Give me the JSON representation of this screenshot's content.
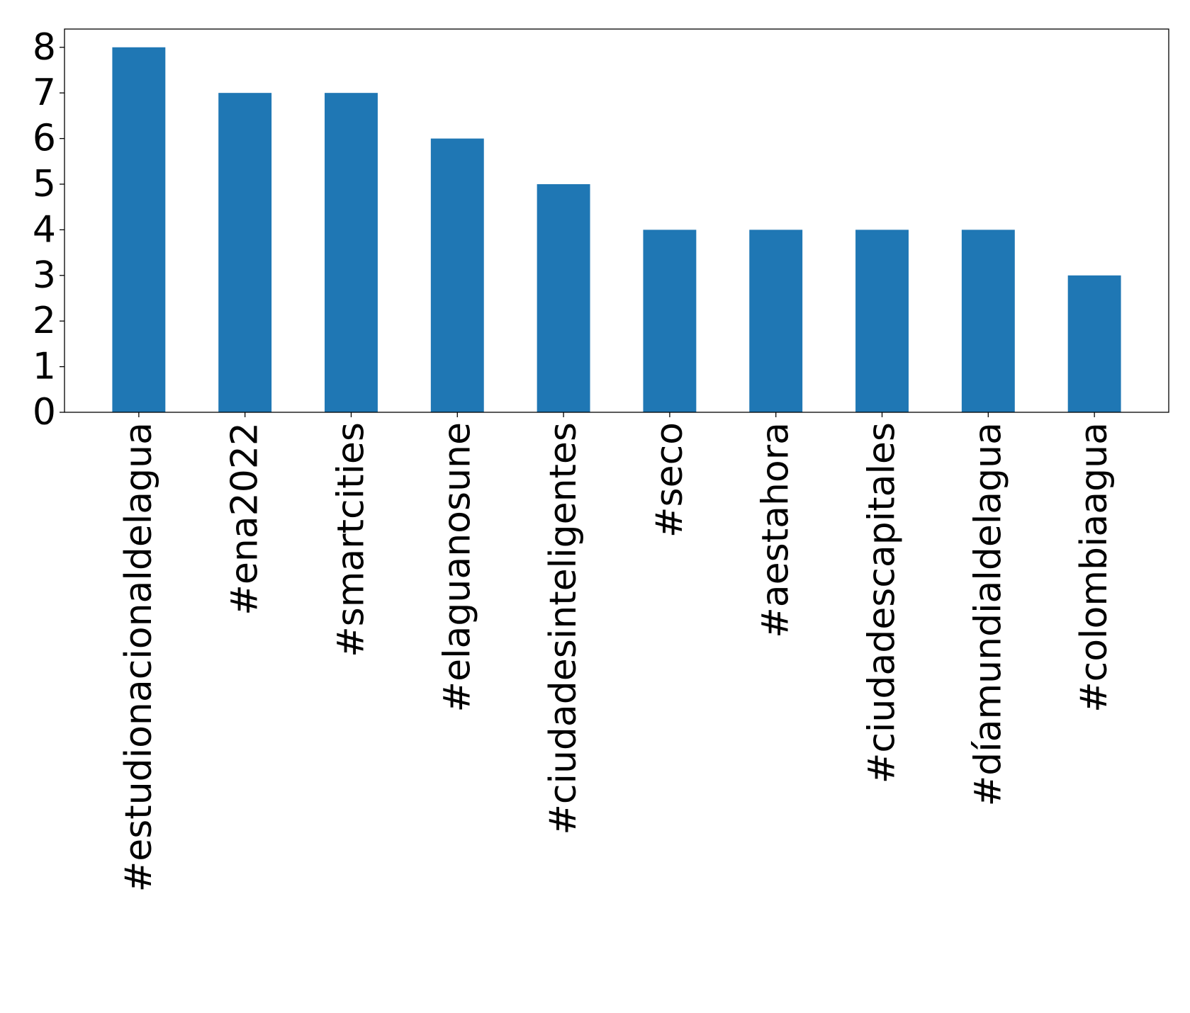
{
  "chart_data": {
    "type": "bar",
    "title": "",
    "xlabel": "",
    "ylabel": "",
    "categories": [
      "#estudionacionaldelagua",
      "#ena2022",
      "#smartcities",
      "#elaguanosune",
      "#ciudadesinteligentes",
      "#seco",
      "#aestahora",
      "#ciudadescapitales",
      "#díamundialdelagua",
      "#colombiaagua"
    ],
    "values": [
      8,
      7,
      7,
      6,
      5,
      4,
      4,
      4,
      4,
      3
    ],
    "yticks": [
      0,
      1,
      2,
      3,
      4,
      5,
      6,
      7,
      8
    ],
    "ylim": [
      0,
      8.4
    ],
    "grid": false,
    "legend": "none",
    "bar_color": "#1f77b4",
    "axis_color": "#000000"
  }
}
